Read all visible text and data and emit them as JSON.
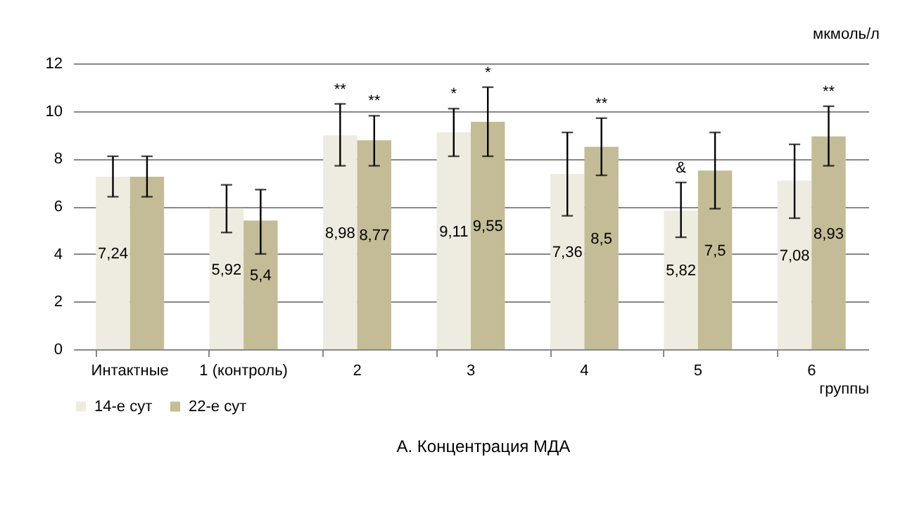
{
  "chart_data": {
    "type": "bar",
    "title": "А. Концентрация МДА",
    "xlabel": "группы",
    "ylabel": "мкмоль/л",
    "categories": [
      "Интактные",
      "1 (контроль)",
      "2",
      "3",
      "4",
      "5",
      "6"
    ],
    "series": [
      {
        "name": "14-е сут",
        "color": "#eeebe0",
        "values": [
          7.24,
          5.92,
          8.98,
          9.11,
          7.36,
          5.82,
          7.08
        ],
        "value_labels": [
          "7,24",
          "5,92",
          "8,98",
          "9,11",
          "7,36",
          "5,82",
          "7,08"
        ],
        "errors": [
          [
            6.4,
            8.1
          ],
          [
            4.9,
            6.9
          ],
          [
            7.7,
            10.3
          ],
          [
            8.1,
            10.1
          ],
          [
            5.6,
            9.1
          ],
          [
            4.7,
            7.0
          ],
          [
            5.5,
            8.6
          ]
        ]
      },
      {
        "name": "22-е сут",
        "color": "#c4bc96",
        "values": [
          7.24,
          5.4,
          8.77,
          9.55,
          8.5,
          7.5,
          8.93
        ],
        "value_labels": [
          null,
          "5,4",
          "8,77",
          "9,55",
          "8,5",
          "7,5",
          "8,93"
        ],
        "errors": [
          [
            6.4,
            8.1
          ],
          [
            4.0,
            6.7
          ],
          [
            7.7,
            9.8
          ],
          [
            8.1,
            11.0
          ],
          [
            7.3,
            9.7
          ],
          [
            5.9,
            9.1
          ],
          [
            7.7,
            10.2
          ]
        ]
      }
    ],
    "ylim": [
      0,
      12
    ],
    "yticks": [
      0,
      2,
      4,
      6,
      8,
      10,
      12
    ],
    "grid": "y",
    "legend": "bottom",
    "annotations": [
      {
        "text": "**",
        "x": "2",
        "y": 8.98
      },
      {
        "text": "**",
        "x": "2",
        "y": 8.77
      },
      {
        "text": "*",
        "x": "3",
        "y": 9.11
      },
      {
        "text": "*",
        "x": "3",
        "y": 9.55
      },
      {
        "text": "**",
        "x": "4",
        "y": 8.5
      },
      {
        "text": "&",
        "x": "5",
        "y": 5.82
      },
      {
        "text": "**",
        "x": "6",
        "y": 8.93
      }
    ]
  }
}
